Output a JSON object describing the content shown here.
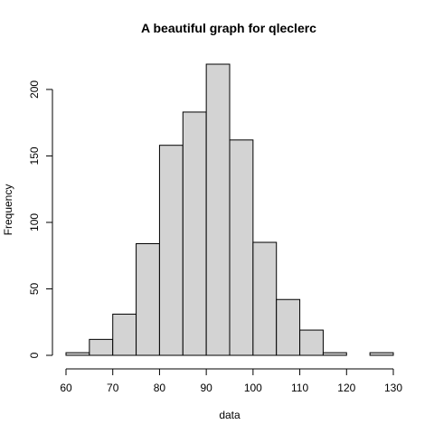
{
  "chart_data": {
    "type": "bar",
    "subtype": "histogram",
    "title": "A beautiful graph for qleclerc",
    "xlabel": "data",
    "ylabel": "Frequency",
    "bin_width": 5,
    "bins": [
      {
        "start": 60,
        "end": 65,
        "count": 2
      },
      {
        "start": 65,
        "end": 70,
        "count": 12
      },
      {
        "start": 70,
        "end": 75,
        "count": 31
      },
      {
        "start": 75,
        "end": 80,
        "count": 84
      },
      {
        "start": 80,
        "end": 85,
        "count": 158
      },
      {
        "start": 85,
        "end": 90,
        "count": 183
      },
      {
        "start": 90,
        "end": 95,
        "count": 219
      },
      {
        "start": 95,
        "end": 100,
        "count": 162
      },
      {
        "start": 100,
        "end": 105,
        "count": 85
      },
      {
        "start": 105,
        "end": 110,
        "count": 42
      },
      {
        "start": 110,
        "end": 115,
        "count": 19
      },
      {
        "start": 115,
        "end": 120,
        "count": 2
      },
      {
        "start": 120,
        "end": 125,
        "count": 0
      },
      {
        "start": 125,
        "end": 130,
        "count": 2
      }
    ],
    "xlim": [
      60,
      130
    ],
    "ylim": [
      0,
      219
    ],
    "x_ticks": [
      60,
      70,
      80,
      90,
      100,
      110,
      120,
      130
    ],
    "y_ticks": [
      0,
      50,
      100,
      150,
      200
    ],
    "grid": false,
    "colors": {
      "bar_fill": "#d3d3d3",
      "bar_stroke": "#000000",
      "axis": "#000000"
    }
  }
}
